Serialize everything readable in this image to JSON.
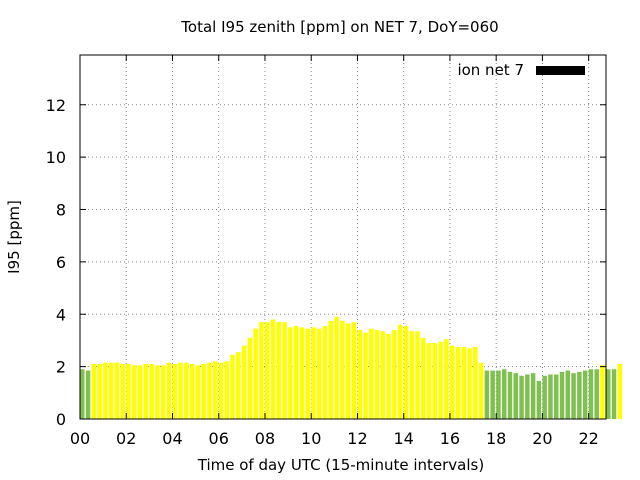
{
  "chart_data": {
    "type": "bar",
    "title": "Total I95 zenith [ppm] on NET 7, DoY=060",
    "xlabel": "Time of day UTC (15-minute intervals)",
    "ylabel": "I95 [ppm]",
    "xlim": [
      0,
      22.75
    ],
    "ylim": [
      0,
      13.9
    ],
    "xticks": [
      0,
      2,
      4,
      6,
      8,
      10,
      12,
      14,
      16,
      18,
      20,
      22
    ],
    "xtick_labels": [
      "00",
      "02",
      "04",
      "06",
      "08",
      "10",
      "12",
      "14",
      "16",
      "18",
      "20",
      "22"
    ],
    "yticks": [
      0,
      2,
      4,
      6,
      8,
      10,
      12
    ],
    "ytick_labels": [
      "0",
      "2",
      "4",
      "6",
      "8",
      "10",
      "12"
    ],
    "grid": true,
    "legend": {
      "label": "ion net 7",
      "color": "#000000",
      "position": "top-right"
    },
    "colors": {
      "yellow": "#ffff00",
      "green": "#7fc050"
    },
    "interval_hours": 0.25,
    "values": [
      1.9,
      1.85,
      2.1,
      2.1,
      2.15,
      2.15,
      2.15,
      2.1,
      2.1,
      2.05,
      2.05,
      2.1,
      2.1,
      2.05,
      2.05,
      2.15,
      2.1,
      2.15,
      2.15,
      2.1,
      2.05,
      2.1,
      2.15,
      2.2,
      2.15,
      2.2,
      2.45,
      2.55,
      2.8,
      3.1,
      3.45,
      3.7,
      3.7,
      3.8,
      3.7,
      3.7,
      3.5,
      3.55,
      3.5,
      3.45,
      3.5,
      3.45,
      3.55,
      3.75,
      3.9,
      3.75,
      3.65,
      3.7,
      3.4,
      3.3,
      3.45,
      3.4,
      3.35,
      3.25,
      3.4,
      3.6,
      3.55,
      3.35,
      3.35,
      3.1,
      2.9,
      2.9,
      2.95,
      3.05,
      2.8,
      2.75,
      2.75,
      2.7,
      2.75,
      2.15,
      1.85,
      1.85,
      1.85,
      1.9,
      1.8,
      1.75,
      1.65,
      1.7,
      1.75,
      1.45,
      1.65,
      1.7,
      1.7,
      1.8,
      1.85,
      1.75,
      1.8,
      1.85,
      1.9,
      1.9,
      2.05,
      1.9,
      1.9,
      2.1
    ],
    "bar_colors": [
      "green",
      "green",
      "yellow",
      "yellow",
      "yellow",
      "yellow",
      "yellow",
      "yellow",
      "yellow",
      "yellow",
      "yellow",
      "yellow",
      "yellow",
      "yellow",
      "yellow",
      "yellow",
      "yellow",
      "yellow",
      "yellow",
      "yellow",
      "yellow",
      "yellow",
      "yellow",
      "yellow",
      "yellow",
      "yellow",
      "yellow",
      "yellow",
      "yellow",
      "yellow",
      "yellow",
      "yellow",
      "yellow",
      "yellow",
      "yellow",
      "yellow",
      "yellow",
      "yellow",
      "yellow",
      "yellow",
      "yellow",
      "yellow",
      "yellow",
      "yellow",
      "yellow",
      "yellow",
      "yellow",
      "yellow",
      "yellow",
      "yellow",
      "yellow",
      "yellow",
      "yellow",
      "yellow",
      "yellow",
      "yellow",
      "yellow",
      "yellow",
      "yellow",
      "yellow",
      "yellow",
      "yellow",
      "yellow",
      "yellow",
      "yellow",
      "yellow",
      "yellow",
      "yellow",
      "yellow",
      "yellow",
      "green",
      "green",
      "green",
      "green",
      "green",
      "green",
      "green",
      "green",
      "green",
      "green",
      "green",
      "green",
      "green",
      "green",
      "green",
      "green",
      "green",
      "green",
      "green",
      "green",
      "yellow",
      "green",
      "green",
      "yellow"
    ]
  }
}
